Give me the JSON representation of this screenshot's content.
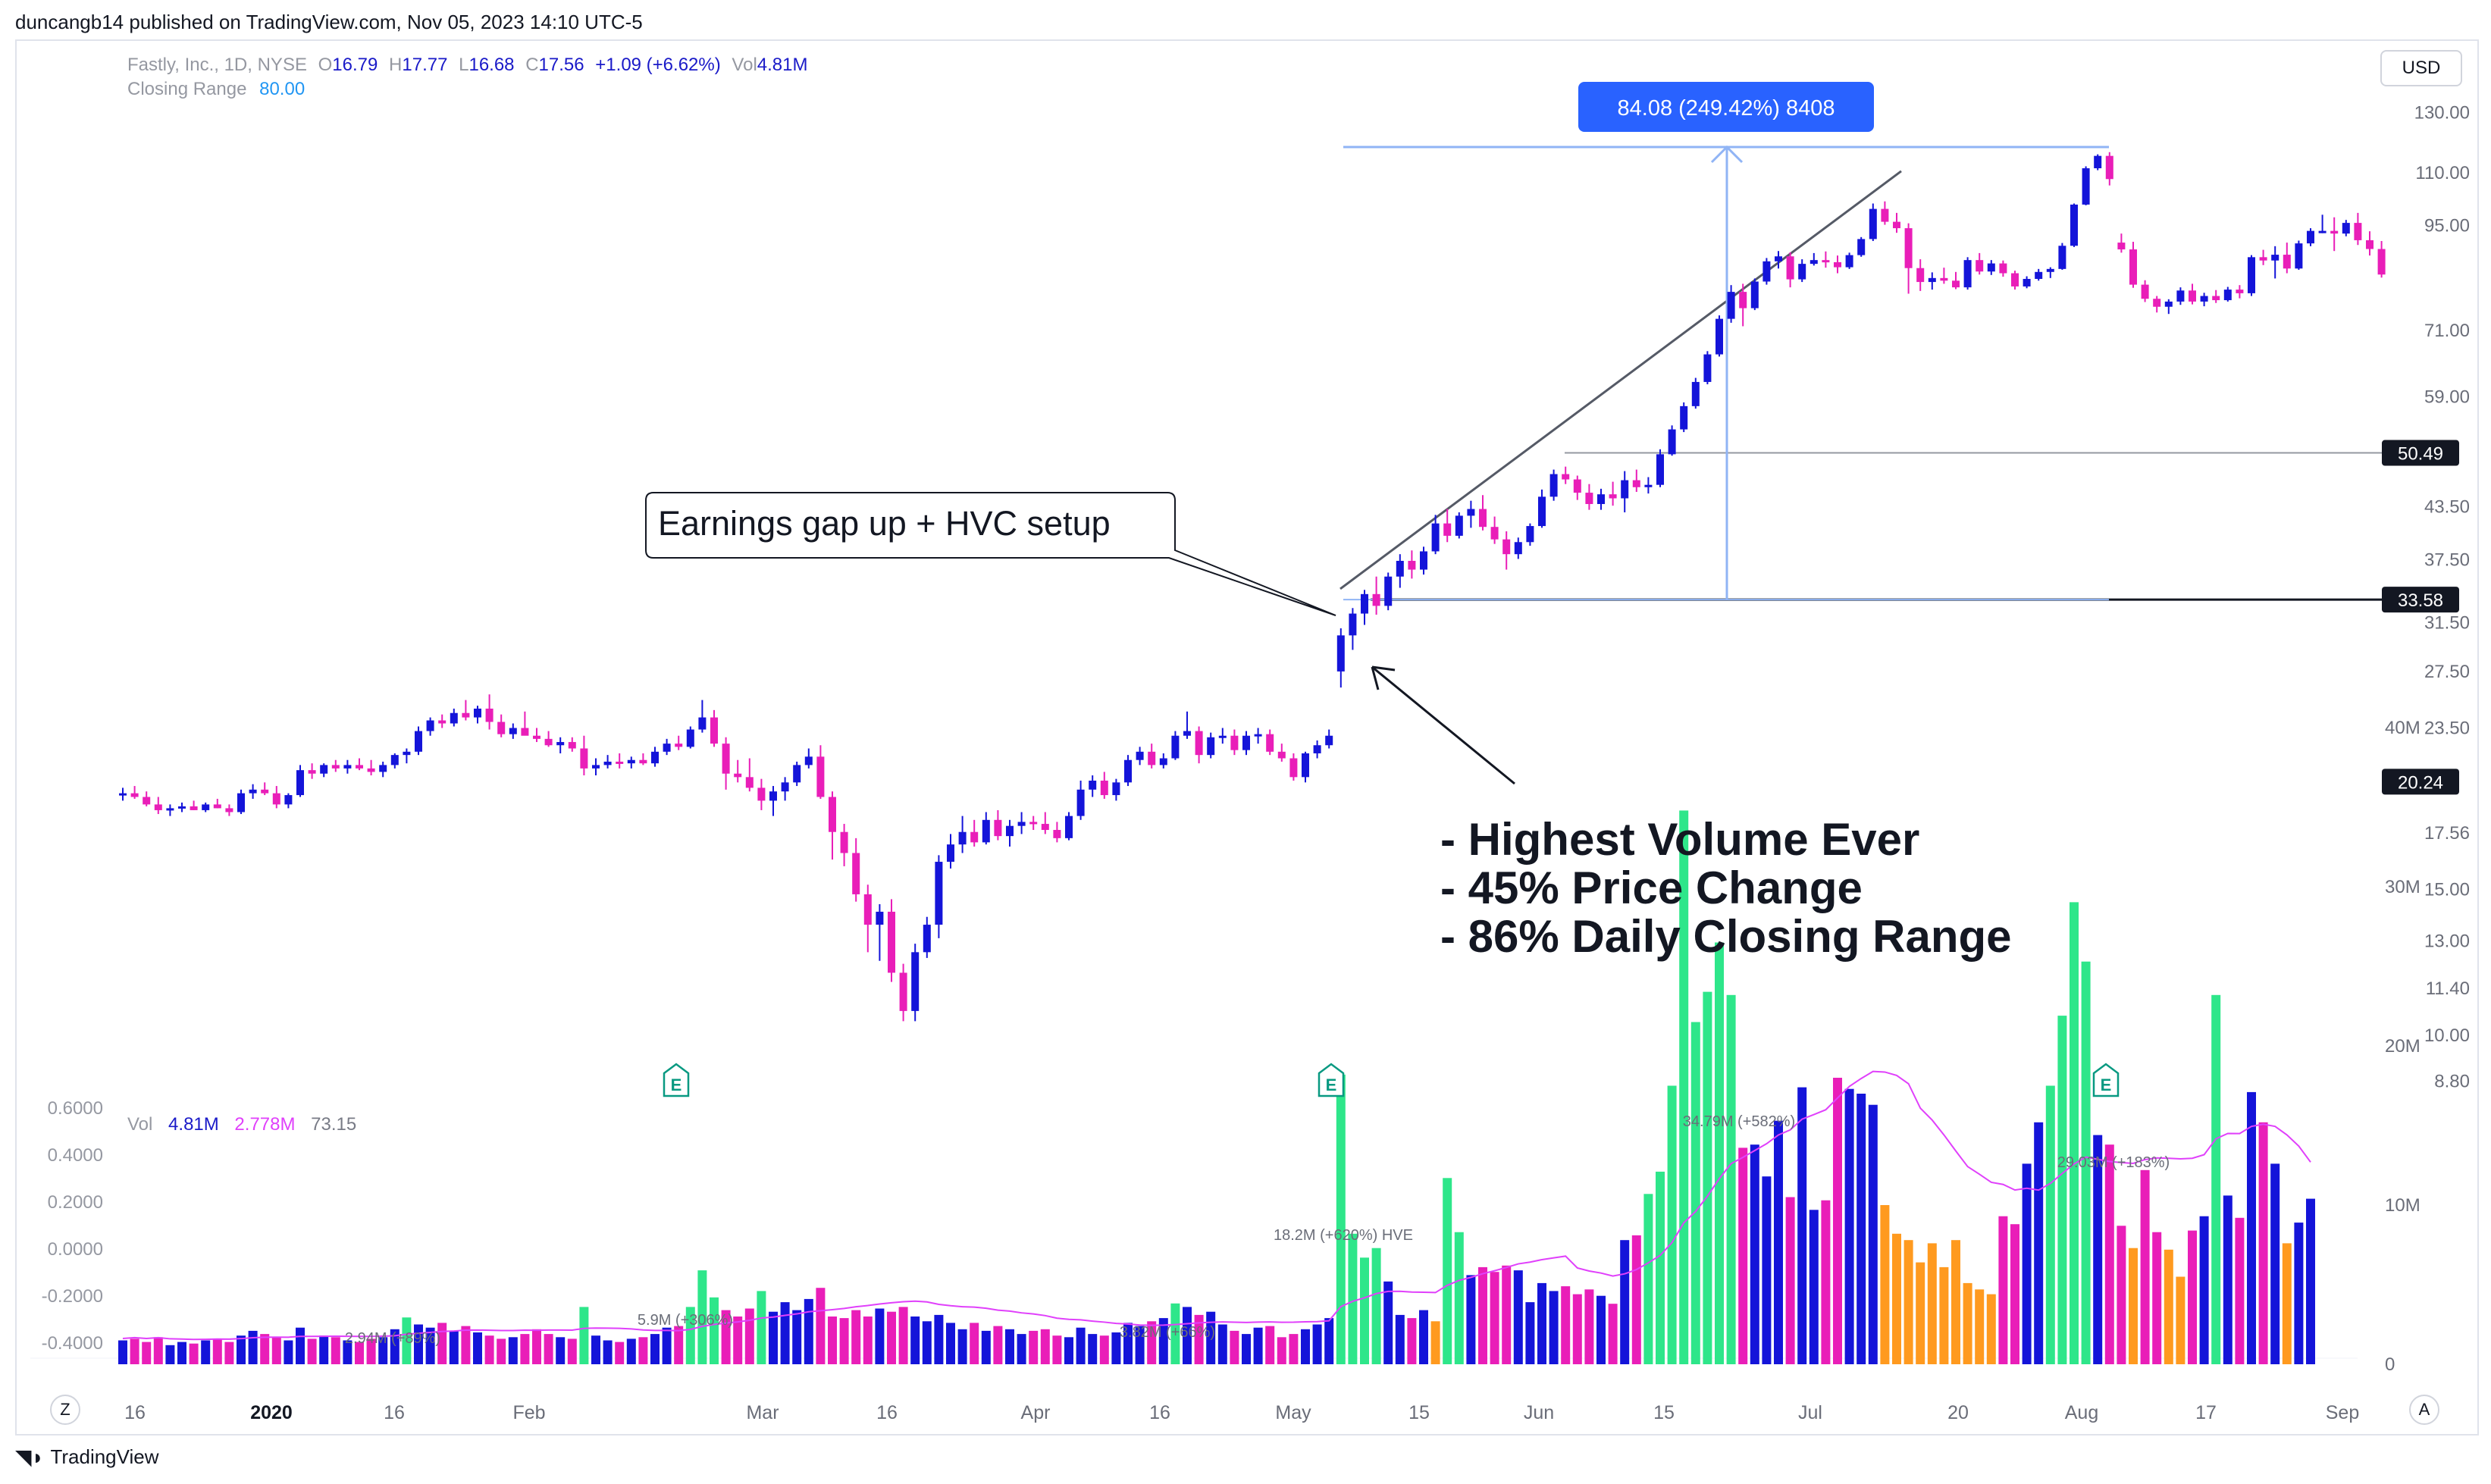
{
  "header": {
    "published_line": "duncangb14 published on TradingView.com, Nov 05, 2023 14:10 UTC-5",
    "currency_button": "USD"
  },
  "legend": {
    "symbol": "Fastly, Inc., 1D, NYSE",
    "o_label": "O",
    "o_value": "16.79",
    "h_label": "H",
    "h_value": "17.77",
    "l_label": "L",
    "l_value": "16.68",
    "c_label": "C",
    "c_value": "17.56",
    "change": "+1.09 (+6.62%)",
    "vol_label": "Vol",
    "vol_value": "4.81M",
    "indicator_label": "Closing Range",
    "indicator_value": "80.00"
  },
  "volume_legend": {
    "label": "Vol",
    "value": "4.81M",
    "ma": "2.778M",
    "extra": "73.15"
  },
  "footer": {
    "brand": "TradingView",
    "left_button": "Z",
    "right_button": "A"
  },
  "colors": {
    "up_candle": "#1414d9",
    "down_candle": "#e91eb8",
    "vol_green": "#2ee68a",
    "vol_orange": "#ff9a1f",
    "vol_ma": "#e040fb",
    "measure": "#90b4f5",
    "measure_label_bg": "#2962ff"
  },
  "chart_data": {
    "type": "candlestick",
    "price_axis": {
      "scale": "log",
      "ticks": [
        "130.00",
        "110.00",
        "95.00",
        "71.00",
        "59.00",
        "50.49",
        "43.50",
        "37.50",
        "33.58",
        "31.50",
        "27.50",
        "23.50",
        "20.24",
        "17.56",
        "15.00",
        "13.00",
        "11.40",
        "10.00",
        "8.80"
      ],
      "marked_levels": [
        {
          "value": "50.49",
          "style": "dark-badge"
        },
        {
          "value": "33.58",
          "style": "dark-badge"
        },
        {
          "value": "20.24",
          "style": "dark-badge"
        }
      ]
    },
    "volume_axis": {
      "ticks": [
        "40M",
        "30M",
        "20M",
        "10M",
        "0"
      ]
    },
    "oscillator_axis": {
      "ticks": [
        "0.6000",
        "0.4000",
        "0.2000",
        "0.0000",
        "-0.2000",
        "-0.4000"
      ]
    },
    "x_axis": {
      "ticks": [
        "16",
        "2020",
        "16",
        "Feb",
        "Mar",
        "16",
        "Apr",
        "16",
        "May",
        "15",
        "Jun",
        "15",
        "Jul",
        "20",
        "Aug",
        "17",
        "Sep"
      ]
    },
    "ohlc": [
      [
        19.6,
        19.9,
        19.2,
        19.6
      ],
      [
        19.6,
        20.0,
        19.3,
        19.4
      ],
      [
        19.4,
        19.7,
        18.9,
        19.0
      ],
      [
        19.0,
        19.4,
        18.5,
        18.7
      ],
      [
        18.7,
        19.0,
        18.4,
        18.8
      ],
      [
        18.8,
        19.1,
        18.6,
        18.9
      ],
      [
        18.9,
        19.2,
        18.7,
        18.7
      ],
      [
        18.7,
        19.1,
        18.6,
        19.0
      ],
      [
        19.0,
        19.3,
        18.8,
        18.8
      ],
      [
        18.8,
        19.0,
        18.4,
        18.6
      ],
      [
        18.6,
        19.8,
        18.5,
        19.6
      ],
      [
        19.6,
        20.1,
        19.3,
        19.8
      ],
      [
        19.8,
        20.2,
        19.5,
        19.6
      ],
      [
        19.6,
        20.0,
        18.8,
        19.0
      ],
      [
        19.0,
        19.6,
        18.8,
        19.5
      ],
      [
        19.5,
        21.2,
        19.4,
        20.9
      ],
      [
        20.9,
        21.3,
        20.4,
        20.7
      ],
      [
        20.7,
        21.3,
        20.5,
        21.2
      ],
      [
        21.2,
        21.5,
        20.8,
        21.0
      ],
      [
        21.0,
        21.5,
        20.7,
        21.2
      ],
      [
        21.2,
        21.6,
        20.9,
        21.0
      ],
      [
        21.0,
        21.5,
        20.6,
        20.8
      ],
      [
        20.8,
        21.4,
        20.5,
        21.2
      ],
      [
        21.2,
        21.9,
        21.0,
        21.8
      ],
      [
        21.8,
        22.2,
        21.3,
        22.0
      ],
      [
        22.0,
        23.6,
        21.8,
        23.3
      ],
      [
        23.3,
        24.2,
        23.0,
        24.0
      ],
      [
        24.0,
        24.4,
        23.5,
        23.8
      ],
      [
        23.8,
        24.8,
        23.6,
        24.5
      ],
      [
        24.5,
        25.4,
        24.0,
        24.2
      ],
      [
        24.2,
        25.0,
        23.8,
        24.8
      ],
      [
        24.8,
        25.8,
        23.4,
        23.9
      ],
      [
        23.9,
        24.4,
        22.9,
        23.1
      ],
      [
        23.1,
        23.8,
        22.8,
        23.5
      ],
      [
        23.5,
        24.6,
        23.3,
        23.0
      ],
      [
        23.0,
        23.5,
        22.6,
        22.8
      ],
      [
        22.8,
        23.3,
        22.3,
        22.4
      ],
      [
        22.4,
        22.9,
        21.9,
        22.6
      ],
      [
        22.6,
        22.9,
        22.0,
        22.2
      ],
      [
        22.2,
        23.0,
        20.6,
        21.0
      ],
      [
        21.0,
        21.6,
        20.6,
        21.2
      ],
      [
        21.2,
        21.8,
        21.0,
        21.4
      ],
      [
        21.4,
        21.9,
        21.0,
        21.3
      ],
      [
        21.3,
        21.7,
        21.0,
        21.5
      ],
      [
        21.5,
        21.9,
        21.2,
        21.3
      ],
      [
        21.3,
        22.3,
        21.1,
        22.0
      ],
      [
        22.0,
        22.8,
        21.8,
        22.5
      ],
      [
        22.5,
        23.0,
        22.1,
        22.3
      ],
      [
        22.3,
        23.6,
        22.2,
        23.4
      ],
      [
        23.4,
        25.4,
        23.2,
        24.2
      ],
      [
        24.2,
        24.7,
        22.3,
        22.5
      ],
      [
        22.5,
        22.9,
        19.8,
        20.7
      ],
      [
        20.7,
        21.5,
        20.2,
        20.5
      ],
      [
        20.5,
        21.6,
        19.7,
        19.9
      ],
      [
        19.9,
        20.4,
        18.7,
        19.2
      ],
      [
        19.2,
        20.0,
        18.4,
        19.7
      ],
      [
        19.7,
        20.5,
        19.2,
        20.2
      ],
      [
        20.2,
        21.4,
        20.0,
        21.2
      ],
      [
        21.2,
        22.2,
        21.0,
        21.7
      ],
      [
        21.7,
        22.4,
        19.3,
        19.4
      ],
      [
        19.4,
        19.7,
        16.3,
        17.6
      ],
      [
        17.6,
        18.0,
        16.0,
        16.6
      ],
      [
        16.6,
        17.3,
        14.5,
        14.8
      ],
      [
        14.8,
        15.2,
        12.6,
        13.6
      ],
      [
        13.6,
        14.4,
        12.3,
        14.1
      ],
      [
        14.1,
        14.6,
        11.6,
        11.9
      ],
      [
        11.9,
        12.2,
        10.4,
        10.7
      ],
      [
        10.7,
        12.9,
        10.4,
        12.6
      ],
      [
        12.6,
        13.9,
        12.4,
        13.6
      ],
      [
        13.6,
        16.5,
        13.1,
        16.2
      ],
      [
        16.2,
        17.5,
        15.9,
        17.0
      ],
      [
        17.0,
        18.4,
        16.6,
        17.6
      ],
      [
        17.6,
        18.2,
        16.9,
        17.1
      ],
      [
        17.1,
        18.6,
        17.0,
        18.2
      ],
      [
        18.2,
        18.7,
        17.2,
        17.4
      ],
      [
        17.4,
        18.2,
        16.9,
        17.9
      ],
      [
        17.9,
        18.6,
        17.5,
        18.1
      ],
      [
        18.1,
        18.4,
        17.7,
        18.0
      ],
      [
        18.0,
        18.6,
        17.5,
        17.7
      ],
      [
        17.7,
        18.1,
        17.1,
        17.3
      ],
      [
        17.3,
        18.6,
        17.2,
        18.4
      ],
      [
        18.4,
        20.3,
        18.2,
        19.8
      ],
      [
        19.8,
        20.6,
        19.4,
        20.3
      ],
      [
        20.3,
        20.8,
        19.3,
        19.5
      ],
      [
        19.5,
        20.4,
        19.2,
        20.2
      ],
      [
        20.2,
        21.8,
        20.0,
        21.5
      ],
      [
        21.5,
        22.3,
        21.2,
        22.0
      ],
      [
        22.0,
        22.5,
        21.0,
        21.2
      ],
      [
        21.2,
        21.9,
        21.0,
        21.6
      ],
      [
        21.6,
        23.3,
        21.5,
        23.0
      ],
      [
        23.0,
        24.6,
        22.8,
        23.3
      ],
      [
        23.3,
        23.6,
        21.3,
        21.8
      ],
      [
        21.8,
        23.2,
        21.6,
        22.9
      ],
      [
        22.9,
        23.5,
        22.5,
        23.0
      ],
      [
        23.0,
        23.4,
        21.8,
        22.1
      ],
      [
        22.1,
        23.3,
        21.8,
        23.0
      ],
      [
        23.0,
        23.5,
        22.5,
        23.1
      ],
      [
        23.1,
        23.4,
        21.8,
        22.0
      ],
      [
        22.0,
        22.5,
        21.4,
        21.6
      ],
      [
        21.6,
        21.9,
        20.3,
        20.5
      ],
      [
        20.5,
        22.0,
        20.2,
        21.9
      ],
      [
        21.9,
        22.7,
        21.6,
        22.4
      ],
      [
        22.4,
        23.4,
        22.2,
        23.0
      ],
      [
        27.5,
        31.0,
        26.3,
        30.4
      ],
      [
        30.4,
        32.8,
        29.2,
        32.3
      ],
      [
        32.3,
        34.5,
        31.3,
        34.1
      ],
      [
        34.1,
        35.8,
        32.2,
        33.0
      ],
      [
        33.0,
        36.2,
        32.6,
        35.8
      ],
      [
        35.8,
        38.1,
        34.7,
        37.4
      ],
      [
        37.4,
        38.5,
        35.6,
        36.5
      ],
      [
        36.5,
        38.9,
        36.0,
        38.4
      ],
      [
        38.4,
        42.5,
        38.1,
        41.5
      ],
      [
        41.5,
        43.2,
        39.4,
        40.1
      ],
      [
        40.1,
        42.8,
        39.8,
        42.4
      ],
      [
        42.4,
        44.2,
        41.0,
        43.2
      ],
      [
        43.2,
        44.9,
        40.7,
        41.1
      ],
      [
        41.1,
        42.3,
        39.2,
        39.7
      ],
      [
        39.7,
        40.6,
        36.5,
        38.1
      ],
      [
        38.1,
        39.9,
        37.6,
        39.4
      ],
      [
        39.4,
        41.5,
        39.0,
        41.2
      ],
      [
        41.2,
        45.6,
        41.0,
        44.7
      ],
      [
        44.7,
        48.2,
        44.2,
        47.6
      ],
      [
        47.6,
        48.6,
        46.3,
        46.9
      ],
      [
        46.9,
        47.4,
        44.3,
        45.2
      ],
      [
        45.2,
        46.3,
        43.1,
        43.8
      ],
      [
        43.8,
        45.7,
        43.1,
        45.0
      ],
      [
        45.0,
        46.6,
        43.6,
        44.5
      ],
      [
        44.5,
        48.0,
        42.8,
        46.8
      ],
      [
        46.8,
        48.2,
        45.3,
        45.9
      ],
      [
        45.9,
        47.2,
        45.1,
        46.2
      ],
      [
        46.2,
        51.0,
        45.9,
        50.3
      ],
      [
        50.3,
        54.5,
        50.1,
        53.9
      ],
      [
        53.9,
        58.1,
        53.5,
        57.5
      ],
      [
        57.5,
        62.2,
        57.1,
        61.5
      ],
      [
        61.5,
        67.0,
        61.1,
        66.4
      ],
      [
        66.4,
        74.0,
        66.0,
        73.3
      ],
      [
        73.3,
        80.5,
        72.5,
        79.0
      ],
      [
        79.0,
        80.8,
        71.8,
        75.5
      ],
      [
        75.5,
        82.0,
        75.1,
        81.3
      ],
      [
        81.3,
        86.8,
        80.6,
        86.0
      ],
      [
        86.0,
        88.5,
        84.3,
        87.2
      ],
      [
        87.2,
        88.2,
        80.0,
        81.8
      ],
      [
        81.8,
        86.5,
        81.2,
        85.4
      ],
      [
        85.4,
        88.0,
        85.0,
        86.3
      ],
      [
        86.3,
        88.4,
        84.5,
        85.8
      ],
      [
        85.8,
        87.4,
        83.2,
        84.6
      ],
      [
        84.6,
        88.1,
        84.2,
        87.5
      ],
      [
        87.5,
        92.0,
        87.1,
        91.5
      ],
      [
        91.5,
        101.0,
        91.0,
        99.5
      ],
      [
        99.5,
        101.6,
        95.2,
        96.0
      ],
      [
        96.0,
        98.4,
        93.1,
        94.3
      ],
      [
        94.3,
        95.6,
        78.6,
        84.4
      ],
      [
        84.4,
        86.5,
        79.2,
        81.2
      ],
      [
        81.2,
        83.4,
        79.5,
        82.1
      ],
      [
        82.1,
        84.5,
        80.8,
        81.5
      ],
      [
        81.5,
        83.5,
        79.6,
        80.0
      ],
      [
        80.0,
        87.0,
        79.5,
        86.3
      ],
      [
        86.3,
        88.0,
        82.9,
        83.6
      ],
      [
        83.6,
        86.3,
        82.8,
        85.5
      ],
      [
        85.5,
        86.2,
        82.4,
        83.2
      ],
      [
        83.2,
        83.8,
        79.5,
        80.2
      ],
      [
        80.2,
        82.5,
        79.8,
        81.9
      ],
      [
        81.9,
        84.2,
        81.5,
        83.5
      ],
      [
        83.5,
        84.6,
        82.1,
        84.2
      ],
      [
        84.2,
        90.5,
        84.0,
        89.8
      ],
      [
        89.8,
        101.0,
        89.5,
        100.7
      ],
      [
        100.7,
        112.0,
        100.5,
        111.4
      ],
      [
        111.4,
        115.8,
        110.8,
        115.3
      ],
      [
        115.3,
        116.5,
        106.2,
        108.1
      ],
      [
        90.6,
        92.9,
        88.1,
        88.9
      ],
      [
        88.9,
        90.8,
        79.9,
        80.6
      ],
      [
        80.6,
        81.6,
        76.8,
        77.5
      ],
      [
        77.5,
        78.1,
        74.6,
        75.8
      ],
      [
        75.8,
        77.4,
        74.3,
        76.9
      ],
      [
        76.9,
        80.0,
        76.2,
        79.3
      ],
      [
        79.3,
        80.8,
        76.3,
        76.9
      ],
      [
        76.9,
        78.8,
        75.9,
        78.1
      ],
      [
        78.1,
        79.4,
        76.6,
        77.2
      ],
      [
        77.2,
        80.1,
        76.9,
        79.5
      ],
      [
        79.5,
        80.5,
        77.6,
        78.7
      ],
      [
        78.7,
        87.5,
        78.1,
        87.0
      ],
      [
        87.0,
        88.8,
        85.1,
        86.2
      ],
      [
        86.2,
        89.7,
        82.0,
        87.6
      ],
      [
        87.6,
        90.6,
        83.2,
        84.3
      ],
      [
        84.3,
        91.1,
        84.0,
        90.4
      ],
      [
        90.4,
        94.3,
        89.7,
        93.6
      ],
      [
        93.6,
        97.9,
        93.0,
        93.6
      ],
      [
        93.6,
        97.2,
        88.5,
        92.9
      ],
      [
        92.9,
        96.5,
        92.2,
        95.7
      ],
      [
        95.7,
        98.4,
        90.0,
        91.2
      ],
      [
        91.2,
        93.5,
        87.4,
        89.0
      ],
      [
        89.0,
        91.0,
        82.2,
        82.9
      ]
    ],
    "volume_millions": [
      1.5,
      1.6,
      1.4,
      1.7,
      1.2,
      1.4,
      1.3,
      1.5,
      1.6,
      1.4,
      1.8,
      2.1,
      1.9,
      1.7,
      1.5,
      2.3,
      1.6,
      1.8,
      1.7,
      1.5,
      1.4,
      1.6,
      1.7,
      2.2,
      2.94,
      2.5,
      2.3,
      2.6,
      2.1,
      2.4,
      2.0,
      1.8,
      1.6,
      1.7,
      1.9,
      2.2,
      1.9,
      1.7,
      1.6,
      3.6,
      1.8,
      1.5,
      1.4,
      1.6,
      1.7,
      1.9,
      2.3,
      2.4,
      3.6,
      5.9,
      4.2,
      3.4,
      3.0,
      3.5,
      4.6,
      3.3,
      3.9,
      3.4,
      4.1,
      4.8,
      3.0,
      2.9,
      3.4,
      3.0,
      3.5,
      3.3,
      3.6,
      3.0,
      2.7,
      3.1,
      2.6,
      2.2,
      2.6,
      2.1,
      2.4,
      2.2,
      1.9,
      2.1,
      2.2,
      1.8,
      1.7,
      2.3,
      1.9,
      1.8,
      2.0,
      2.6,
      2.4,
      2.7,
      2.9,
      3.82,
      3.6,
      3.1,
      3.3,
      2.5,
      2.1,
      1.9,
      2.3,
      2.4,
      1.7,
      1.9,
      2.2,
      2.5,
      2.9,
      18.2,
      8.2,
      6.7,
      7.3,
      5.2,
      3.1,
      2.9,
      3.4,
      2.7,
      11.7,
      8.3,
      5.6,
      6.1,
      5.8,
      6.2,
      5.9,
      3.9,
      5.1,
      4.6,
      4.9,
      4.4,
      4.7,
      4.3,
      3.8,
      7.8,
      8.1,
      10.7,
      12.1,
      17.5,
      34.79,
      21.5,
      23.4,
      26.5,
      23.2,
      13.6,
      13.8,
      11.8,
      15.3,
      10.5,
      17.4,
      9.7,
      10.3,
      18.0,
      17.3,
      17.0,
      16.3,
      10.0,
      8.2,
      7.8,
      6.4,
      7.6,
      6.1,
      7.8,
      5.1,
      4.7,
      4.4,
      9.3,
      8.8,
      12.6,
      15.2,
      17.5,
      21.9,
      29.03,
      25.3,
      14.4,
      13.8,
      8.7,
      7.3,
      12.2,
      8.3,
      7.2,
      5.5,
      8.4,
      9.3,
      23.2,
      10.6,
      9.2,
      17.1,
      15.2,
      12.6,
      7.6,
      8.9,
      10.4
    ],
    "annotations": [
      {
        "type": "callout",
        "text": "Earnings gap up + HVC setup"
      },
      {
        "type": "text",
        "lines": [
          "- Highest Volume Ever",
          "- 45% Price Change",
          "- 86% Daily Closing Range"
        ]
      },
      {
        "type": "measure",
        "label": "84.08 (249.42%) 8408"
      },
      {
        "type": "volume_label",
        "text": "2.94M (+89%)"
      },
      {
        "type": "volume_label",
        "text": "5.9M (+306%)"
      },
      {
        "type": "volume_label",
        "text": "3.82M (+66%)"
      },
      {
        "type": "volume_label",
        "text": "18.2M (+620%) HVE"
      },
      {
        "type": "volume_label",
        "text": "34.79M (+582%)"
      },
      {
        "type": "volume_label",
        "text": "29.03M (+183%)"
      },
      {
        "type": "earnings_marker",
        "text": "E"
      },
      {
        "type": "earnings_marker",
        "text": "E"
      },
      {
        "type": "earnings_marker",
        "text": "E"
      }
    ]
  }
}
